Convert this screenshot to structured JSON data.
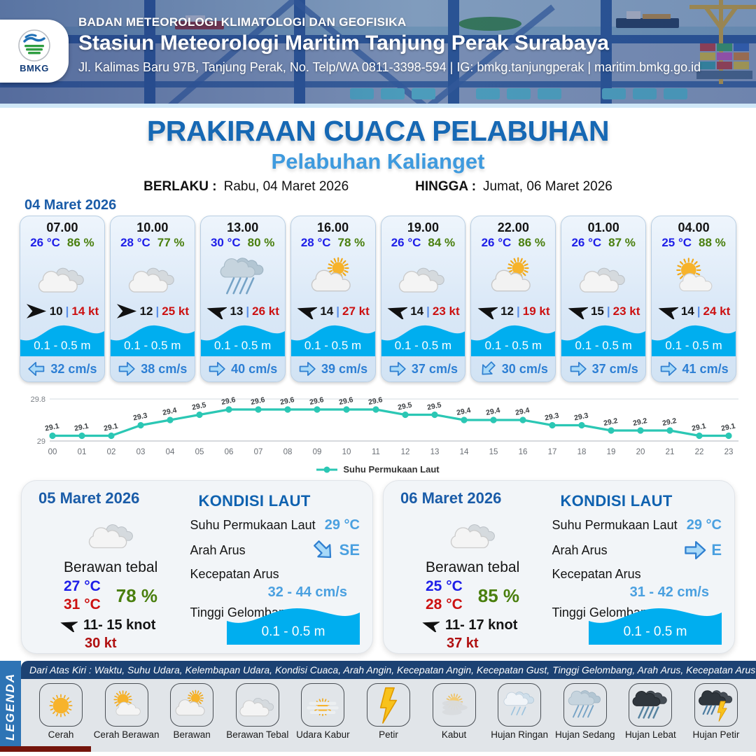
{
  "header": {
    "logo_text": "BMKG",
    "line1": "BADAN METEOROLOGI KLIMATOLOGI DAN GEOFISIKA",
    "line2": "Stasiun Meteorologi Maritim Tanjung Perak Surabaya",
    "line3": "Jl. Kalimas Baru 97B, Tanjung Perak, No. Telp/WA 0811-3398-594 | IG: bmkg.tanjungperak | maritim.bmkg.go.id"
  },
  "title": {
    "main": "PRAKIRAAN CUACA PELABUHAN",
    "sub": "Pelabuhan Kalianget",
    "berlaku_label": "BERLAKU :",
    "berlaku_value": "Rabu, 04 Maret 2026",
    "hingga_label": "HINGGA :",
    "hingga_value": "Jumat, 06 Maret 2026"
  },
  "forecast": {
    "date": "04 Maret 2026",
    "cards": [
      {
        "time": "07.00",
        "temp": "26 °C",
        "humidity": "86 %",
        "icon": "berawan-tebal",
        "wind_dir": "right",
        "wind_speed": "10",
        "gust": "14 kt",
        "wave": "0.1 - 0.5 m",
        "current_dir": "left",
        "current": "32 cm/s"
      },
      {
        "time": "10.00",
        "temp": "28 °C",
        "humidity": "77 %",
        "icon": "berawan-tebal",
        "wind_dir": "right",
        "wind_speed": "12",
        "gust": "25 kt",
        "wave": "0.1 - 0.5 m",
        "current_dir": "right",
        "current": "38 cm/s"
      },
      {
        "time": "13.00",
        "temp": "30 °C",
        "humidity": "80 %",
        "icon": "hujan-sedang",
        "wind_dir": "left",
        "wind_speed": "13",
        "gust": "26 kt",
        "wave": "0.1 - 0.5 m",
        "current_dir": "right",
        "current": "40 cm/s"
      },
      {
        "time": "16.00",
        "temp": "28 °C",
        "humidity": "78 %",
        "icon": "berawan",
        "wind_dir": "left",
        "wind_speed": "14",
        "gust": "27 kt",
        "wave": "0.1 - 0.5 m",
        "current_dir": "right",
        "current": "39 cm/s"
      },
      {
        "time": "19.00",
        "temp": "26 °C",
        "humidity": "84 %",
        "icon": "berawan-tebal",
        "wind_dir": "left",
        "wind_speed": "14",
        "gust": "23 kt",
        "wave": "0.1 - 0.5 m",
        "current_dir": "right",
        "current": "37 cm/s"
      },
      {
        "time": "22.00",
        "temp": "26 °C",
        "humidity": "86 %",
        "icon": "berawan",
        "wind_dir": "left",
        "wind_speed": "12",
        "gust": "19 kt",
        "wave": "0.1 - 0.5 m",
        "current_dir": "down-left",
        "current": "30 cm/s"
      },
      {
        "time": "01.00",
        "temp": "26 °C",
        "humidity": "87 %",
        "icon": "berawan-tebal",
        "wind_dir": "left",
        "wind_speed": "15",
        "gust": "23 kt",
        "wave": "0.1 - 0.5 m",
        "current_dir": "right",
        "current": "37 cm/s"
      },
      {
        "time": "04.00",
        "temp": "25 °C",
        "humidity": "88 %",
        "icon": "cerah-berawan",
        "wind_dir": "left",
        "wind_speed": "14",
        "gust": "24 kt",
        "wave": "0.1 - 0.5 m",
        "current_dir": "right",
        "current": "41 cm/s"
      }
    ]
  },
  "chart_data": {
    "type": "line",
    "title": "",
    "series_name": "Suhu Permukaan Laut",
    "x": [
      "00",
      "01",
      "02",
      "03",
      "04",
      "05",
      "06",
      "07",
      "08",
      "09",
      "10",
      "11",
      "12",
      "13",
      "14",
      "15",
      "16",
      "17",
      "18",
      "19",
      "20",
      "21",
      "22",
      "23"
    ],
    "values": [
      29.1,
      29.1,
      29.1,
      29.3,
      29.4,
      29.5,
      29.6,
      29.6,
      29.6,
      29.6,
      29.6,
      29.6,
      29.5,
      29.5,
      29.4,
      29.4,
      29.4,
      29.3,
      29.3,
      29.2,
      29.2,
      29.2,
      29.1,
      29.1
    ],
    "ylim": [
      29,
      29.8
    ],
    "yticks": [
      "29.8",
      "29"
    ],
    "line_color": "#2bc7b4",
    "legend_position": "bottom",
    "grid": true
  },
  "day_cards": [
    {
      "date": "05 Maret 2026",
      "icon": "berawan-tebal",
      "condition": "Berawan tebal",
      "temp_min": "27 °C",
      "temp_max": "31 °C",
      "humidity": "78 %",
      "wind": "11- 15 knot",
      "gust": "30 kt",
      "sea": {
        "title": "KONDISI LAUT",
        "sst_label": "Suhu Permukaan Laut",
        "sst": "29 °C",
        "arah_label": "Arah Arus",
        "arah": "SE",
        "arah_dir": "down-right",
        "kecepatan_label": "Kecepatan Arus",
        "kecepatan": "32 - 44 cm/s",
        "tinggi_label": "Tinggi Gelombang",
        "tinggi": "0.1 - 0.5 m"
      }
    },
    {
      "date": "06 Maret 2026",
      "icon": "berawan-tebal",
      "condition": "Berawan tebal",
      "temp_min": "25 °C",
      "temp_max": "28 °C",
      "humidity": "85 %",
      "wind": "11- 17 knot",
      "gust": "37 kt",
      "sea": {
        "title": "KONDISI LAUT",
        "sst_label": "Suhu Permukaan Laut",
        "sst": "29 °C",
        "arah_label": "Arah Arus",
        "arah": "E",
        "arah_dir": "right",
        "kecepatan_label": "Kecepatan Arus",
        "kecepatan": "31 - 42 cm/s",
        "tinggi_label": "Tinggi Gelombang",
        "tinggi": "0.1 - 0.5 m"
      }
    }
  ],
  "legend": {
    "ribbon": "LEGENDA",
    "header": "Dari Atas Kiri : Waktu, Suhu Udara, Kelembapan Udara, Kondisi Cuaca, Arah Angin, Kecepatan Angin, Kecepatan Gust, Tinggi Gelombang, Arah Arus, Kecepatan Arus",
    "items": [
      {
        "label": "Cerah",
        "icon": "cerah"
      },
      {
        "label": "Cerah Berawan",
        "icon": "cerah-berawan"
      },
      {
        "label": "Berawan",
        "icon": "berawan"
      },
      {
        "label": "Berawan Tebal",
        "icon": "berawan-tebal"
      },
      {
        "label": "Udara Kabur",
        "icon": "udara-kabur"
      },
      {
        "label": "Petir",
        "icon": "petir"
      },
      {
        "label": "Kabut",
        "icon": "kabut"
      },
      {
        "label": "Hujan Ringan",
        "icon": "hujan-ringan"
      },
      {
        "label": "Hujan Sedang",
        "icon": "hujan-sedang"
      },
      {
        "label": "Hujan Lebat",
        "icon": "hujan-lebat"
      },
      {
        "label": "Hujan Petir",
        "icon": "hujan-petir"
      }
    ]
  },
  "colors": {
    "title_main": "#1668b4",
    "title_sub": "#3e9ade",
    "date_heading": "#1a5ca8",
    "temp_blue": "#1e1ee8",
    "humidity_green": "#4a7f0e",
    "gust_red": "#cc1111",
    "current_blue": "#2d7fd4",
    "wave_cyan": "#00aeef",
    "chart_teal": "#2bc7b4",
    "legend_bar": "#1c4273",
    "legend_ribbon": "#2e74b5"
  }
}
